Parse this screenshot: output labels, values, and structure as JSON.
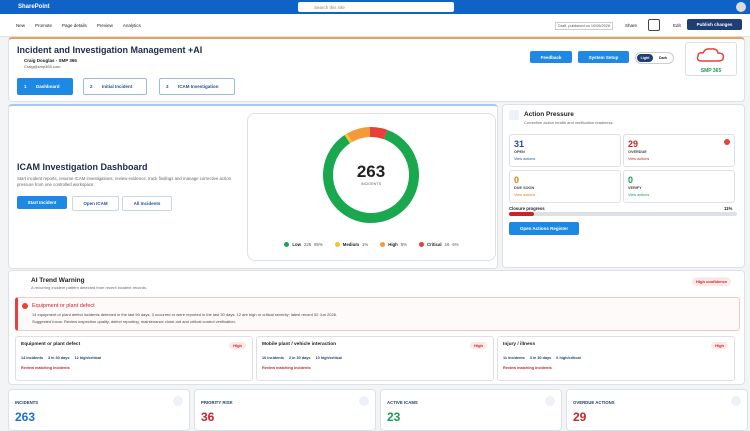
{
  "topbar": {
    "app": "SharePoint",
    "search": "Search this site"
  },
  "toolbar": {
    "items": [
      "New",
      "Promote",
      "Page details",
      "Preview",
      "Analytics"
    ],
    "status": "Draft, published on 10/06/2026",
    "share": "Share",
    "edit": "Edit",
    "publish": "Publish changes"
  },
  "header": {
    "title": "Incident and Investigation Management +AI",
    "user": "Craig Douglas - SMP 365",
    "email": "Craig@smp365.com",
    "feedback": "Feedback",
    "setup": "System Setup",
    "light": "Light",
    "dark": "Dark",
    "logo": "SMP 365",
    "steps": [
      {
        "num": "1",
        "label": "Dashboard"
      },
      {
        "num": "2",
        "label": "Initial Incident"
      },
      {
        "num": "3",
        "label": "ICAM Investigation"
      }
    ]
  },
  "dashboard": {
    "title": "ICAM Investigation Dashboard",
    "description": "Start incident reports, resume ICAM investigations, review evidence, track findings and manage corrective action pressure from one controlled workspace.",
    "buttons": [
      "Start Incident",
      "Open ICAM",
      "All Incidents"
    ],
    "donut": {
      "total": "263",
      "total_label": "INCIDENTS",
      "segments": [
        {
          "name": "Low",
          "count": "225",
          "percent": 86,
          "percent_label": "86%",
          "color": "#1aa84f"
        },
        {
          "name": "Medium",
          "percent": 1,
          "percent_label": "1%",
          "color": "#f5c431"
        },
        {
          "name": "High",
          "percent": 8,
          "percent_label": "8%",
          "color": "#f39a3a"
        },
        {
          "name": "Critical",
          "count": "16",
          "percent": 6,
          "percent_label": "6%",
          "color": "#e8403a"
        }
      ]
    }
  },
  "action_pressure": {
    "title": "Action Pressure",
    "subtitle": "Corrective action health and verification readiness.",
    "tiles": [
      {
        "value": "31",
        "label": "OPEN",
        "link": "View actions"
      },
      {
        "value": "29",
        "label": "OVERDUE",
        "link": "View actions"
      },
      {
        "value": "0",
        "label": "DUE SOON",
        "link": "View actions"
      },
      {
        "value": "0",
        "label": "VERIFY",
        "link": "View actions"
      }
    ],
    "progress_label": "Closure progress",
    "progress": 11,
    "progress_text": "11%",
    "register": "Open Actions Register"
  },
  "trend": {
    "title": "AI Trend Warning",
    "subtitle": "A recurring incident pattern detected from recent incident records.",
    "confidence": "High confidence",
    "alert": {
      "title": "Equipment or plant defect",
      "text": "14 equipment or plant defect incidents detected in the last 90 days: 3 occurred or were reported in the last 30 days: 12 are high or critical severity; latest record 02 Jun 2026.",
      "focus": "Suggested focus: Review inspection quality, defect reporting, maintenance close-out and critical control verification."
    },
    "cards": [
      {
        "title": "Equipment or plant defect",
        "badge": "High",
        "stats": [
          "14 incidents",
          "3 in 30 days",
          "12 high/critical"
        ],
        "link": "Review matching incidents"
      },
      {
        "title": "Mobile plant / vehicle interaction",
        "badge": "High",
        "stats": [
          "10 incidents",
          "2 in 30 days",
          "10 high/critical"
        ],
        "link": "Review matching incidents"
      },
      {
        "title": "Injury / illness",
        "badge": "High",
        "stats": [
          "11 incidents",
          "3 in 30 days",
          "6 high/critical"
        ],
        "link": "Review matching incidents"
      }
    ]
  },
  "kpis": [
    {
      "label": "INCIDENTS",
      "value": "263",
      "color": "#1f6fd1"
    },
    {
      "label": "PRIORITY RISK",
      "value": "36",
      "color": "#c8242a"
    },
    {
      "label": "ACTIVE ICAMS",
      "value": "23",
      "color": "#1a9a55"
    },
    {
      "label": "OVERDUE ACTIONS",
      "value": "29",
      "color": "#c8242a"
    }
  ]
}
